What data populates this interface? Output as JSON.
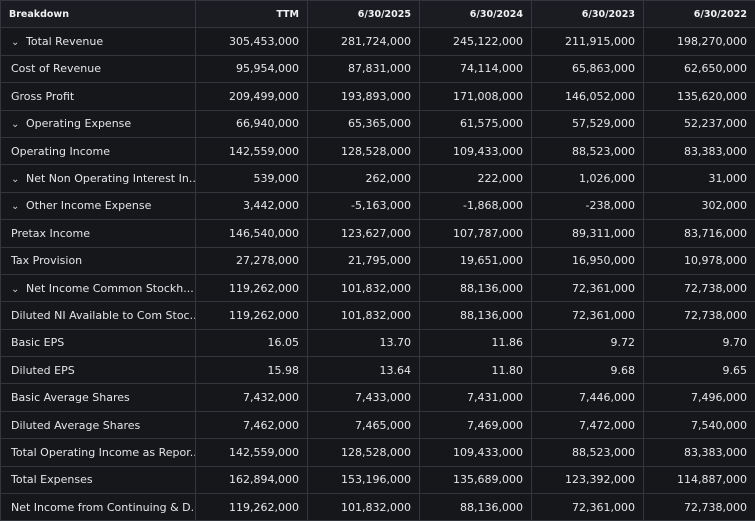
{
  "table": {
    "header": [
      "Breakdown",
      "TTM",
      "6/30/2025",
      "6/30/2024",
      "6/30/2023",
      "6/30/2022"
    ],
    "rows": [
      [
        "Total Revenue",
        "305,453,000",
        "281,724,000",
        "245,122,000",
        "211,915,000",
        "198,270,000"
      ],
      [
        "Cost of Revenue",
        "95,954,000",
        "87,831,000",
        "74,114,000",
        "65,863,000",
        "62,650,000"
      ],
      [
        "Gross Profit",
        "209,499,000",
        "193,893,000",
        "171,008,000",
        "146,052,000",
        "135,620,000"
      ],
      [
        "Operating Expense",
        "66,940,000",
        "65,365,000",
        "61,575,000",
        "57,529,000",
        "52,237,000"
      ],
      [
        "Operating Income",
        "142,559,000",
        "128,528,000",
        "109,433,000",
        "88,523,000",
        "83,383,000"
      ],
      [
        "Net Non Operating Interest In...",
        "539,000",
        "262,000",
        "222,000",
        "1,026,000",
        "31,000"
      ],
      [
        "Other Income Expense",
        "3,442,000",
        "-5,163,000",
        "-1,868,000",
        "-238,000",
        "302,000"
      ],
      [
        "Pretax Income",
        "146,540,000",
        "123,627,000",
        "107,787,000",
        "89,311,000",
        "83,716,000"
      ],
      [
        "Tax Provision",
        "27,278,000",
        "21,795,000",
        "19,651,000",
        "16,950,000",
        "10,978,000"
      ],
      [
        "Net Income Common Stockh...",
        "119,262,000",
        "101,832,000",
        "88,136,000",
        "72,361,000",
        "72,738,000"
      ],
      [
        "Diluted NI Available to Com Stoc...",
        "119,262,000",
        "101,832,000",
        "88,136,000",
        "72,361,000",
        "72,738,000"
      ],
      [
        "Basic EPS",
        "16.05",
        "13.70",
        "11.86",
        "9.72",
        "9.70"
      ],
      [
        "Diluted EPS",
        "15.98",
        "13.64",
        "11.80",
        "9.68",
        "9.65"
      ],
      [
        "Basic Average Shares",
        "7,432,000",
        "7,433,000",
        "7,431,000",
        "7,446,000",
        "7,496,000"
      ],
      [
        "Diluted Average Shares",
        "7,462,000",
        "7,465,000",
        "7,469,000",
        "7,472,000",
        "7,540,000"
      ],
      [
        "Total Operating Income as Repor...",
        "142,559,000",
        "128,528,000",
        "109,433,000",
        "88,523,000",
        "83,383,000"
      ],
      [
        "Total Expenses",
        "162,894,000",
        "153,196,000",
        "135,689,000",
        "123,392,000",
        "114,887,000"
      ],
      [
        "Net Income from Continuing & D...",
        "119,262,000",
        "101,832,000",
        "88,136,000",
        "72,361,000",
        "72,738,000"
      ]
    ]
  }
}
